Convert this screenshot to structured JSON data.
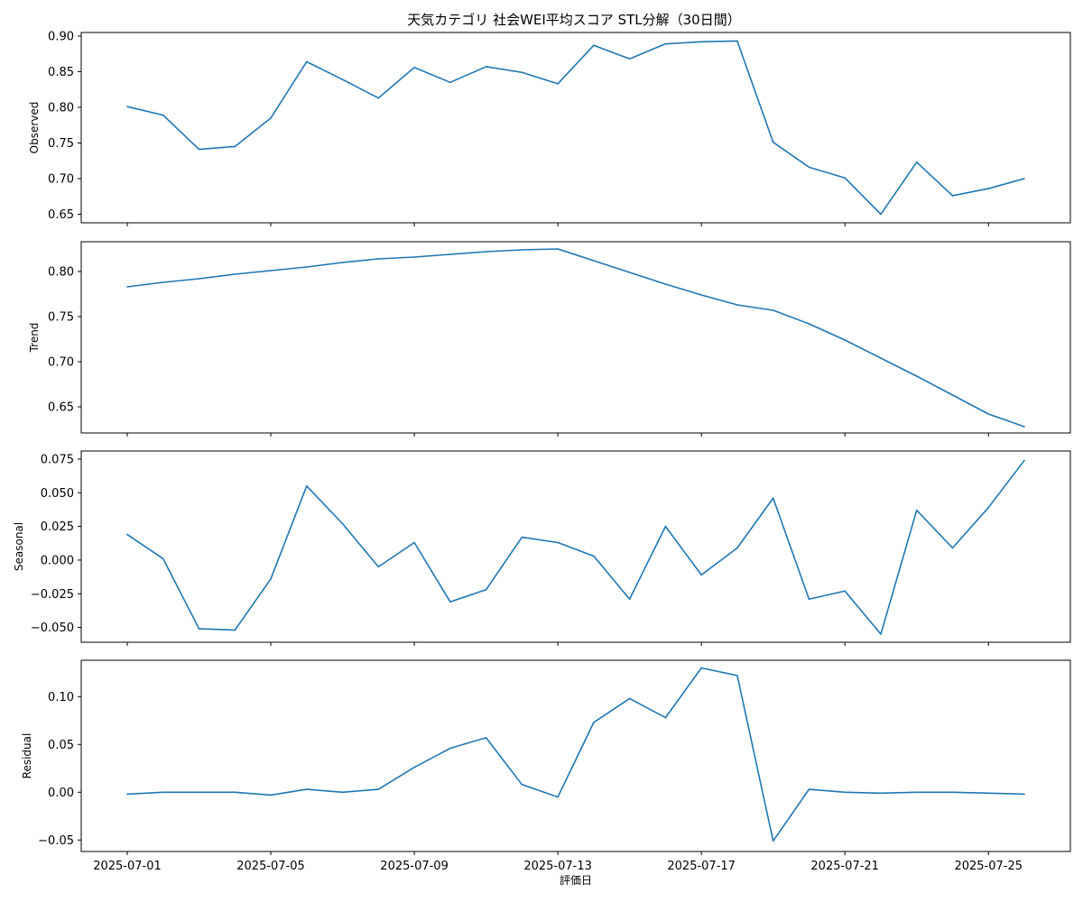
{
  "chart_data": {
    "type": "line",
    "title": "天気カテゴリ 社会WEI平均スコア STL分解（30日間）",
    "xlabel": "評価日",
    "x": [
      "2025-07-01",
      "2025-07-02",
      "2025-07-03",
      "2025-07-04",
      "2025-07-05",
      "2025-07-06",
      "2025-07-07",
      "2025-07-08",
      "2025-07-09",
      "2025-07-10",
      "2025-07-11",
      "2025-07-12",
      "2025-07-13",
      "2025-07-14",
      "2025-07-15",
      "2025-07-16",
      "2025-07-17",
      "2025-07-18",
      "2025-07-19",
      "2025-07-20",
      "2025-07-21",
      "2025-07-22",
      "2025-07-23",
      "2025-07-24",
      "2025-07-25",
      "2025-07-26"
    ],
    "x_tick_labels": [
      "2025-07-01",
      "2025-07-05",
      "2025-07-09",
      "2025-07-13",
      "2025-07-17",
      "2025-07-21",
      "2025-07-25"
    ],
    "line_color": "#1f77b4",
    "panels": [
      {
        "ylabel": "Observed",
        "ylim": [
          0.638,
          0.905
        ],
        "yticks": [
          0.65,
          0.7,
          0.75,
          0.8,
          0.85,
          0.9
        ],
        "ytick_labels": [
          "0.65",
          "0.70",
          "0.75",
          "0.80",
          "0.85",
          "0.90"
        ],
        "values": [
          0.801,
          0.789,
          0.741,
          0.745,
          0.785,
          0.864,
          0.839,
          0.813,
          0.856,
          0.835,
          0.857,
          0.849,
          0.833,
          0.887,
          0.868,
          0.889,
          0.892,
          0.893,
          0.751,
          0.716,
          0.701,
          0.65,
          0.723,
          0.676,
          0.686,
          0.7
        ]
      },
      {
        "ylabel": "Trend",
        "ylim": [
          0.621,
          0.833
        ],
        "yticks": [
          0.65,
          0.7,
          0.75,
          0.8
        ],
        "ytick_labels": [
          "0.65",
          "0.70",
          "0.75",
          "0.80"
        ],
        "values": [
          0.783,
          0.788,
          0.792,
          0.797,
          0.801,
          0.805,
          0.81,
          0.814,
          0.816,
          0.819,
          0.822,
          0.824,
          0.825,
          0.812,
          0.799,
          0.786,
          0.774,
          0.763,
          0.757,
          0.742,
          0.724,
          0.704,
          0.684,
          0.663,
          0.642,
          0.628
        ]
      },
      {
        "ylabel": "Seasonal",
        "ylim": [
          -0.061,
          0.081
        ],
        "yticks": [
          -0.05,
          -0.025,
          0.0,
          0.025,
          0.05,
          0.075
        ],
        "ytick_labels": [
          "−0.050",
          "−0.025",
          "0.000",
          "0.025",
          "0.050",
          "0.075"
        ],
        "values": [
          0.019,
          0.001,
          -0.051,
          -0.052,
          -0.014,
          0.055,
          0.027,
          -0.005,
          0.013,
          -0.031,
          -0.022,
          0.017,
          0.013,
          0.003,
          -0.029,
          0.025,
          -0.011,
          0.009,
          0.046,
          -0.029,
          -0.023,
          -0.055,
          0.037,
          0.009,
          0.039,
          0.074
        ]
      },
      {
        "ylabel": "Residual",
        "ylim": [
          -0.062,
          0.138
        ],
        "yticks": [
          -0.05,
          0.0,
          0.05,
          0.1
        ],
        "ytick_labels": [
          "−0.05",
          "0.00",
          "0.05",
          "0.10"
        ],
        "values": [
          -0.002,
          0.0,
          0.0,
          0.0,
          -0.003,
          0.003,
          0.0,
          0.003,
          0.026,
          0.046,
          0.057,
          0.008,
          -0.005,
          0.073,
          0.098,
          0.078,
          0.13,
          0.122,
          -0.051,
          0.003,
          0.0,
          -0.001,
          0.0,
          0.0,
          -0.001,
          -0.002
        ]
      }
    ]
  }
}
